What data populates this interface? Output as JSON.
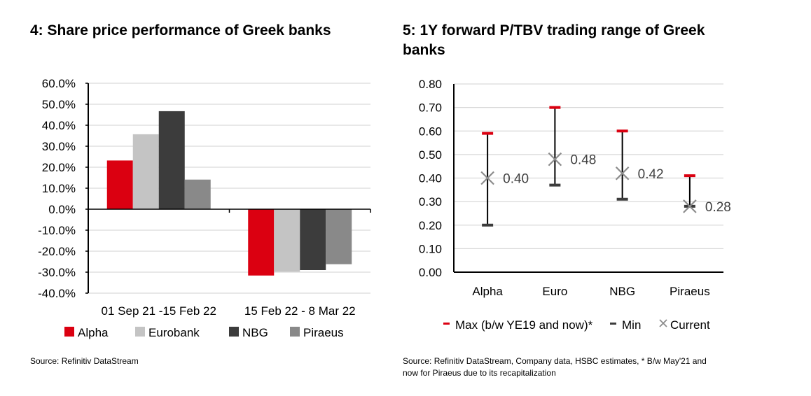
{
  "chart_data": [
    {
      "type": "bar",
      "title": "4: Share price performance of Greek banks",
      "categories": [
        "01 Sep 21 -15 Feb 22",
        "15 Feb 22 - 8 Mar 22"
      ],
      "series": [
        {
          "name": "Alpha",
          "values": [
            23.2,
            -31.6
          ],
          "color": "#db0011"
        },
        {
          "name": "Eurobank",
          "values": [
            35.7,
            -29.8
          ],
          "color": "#c4c4c4"
        },
        {
          "name": "NBG",
          "values": [
            46.7,
            -29.0
          ],
          "color": "#3c3c3c"
        },
        {
          "name": "Piraeus",
          "values": [
            14.1,
            -26.2
          ],
          "color": "#898989"
        }
      ],
      "ylim": [
        -40,
        60
      ],
      "yticks": [
        "60.0%",
        "50.0%",
        "40.0%",
        "30.0%",
        "20.0%",
        "10.0%",
        "0.0%",
        "-10.0%",
        "-20.0%",
        "-30.0%",
        "-40.0%"
      ],
      "grid": true,
      "legend": "bottom",
      "source": "Source: Refinitiv DataStream"
    },
    {
      "type": "range",
      "title": "5: 1Y forward P/TBV trading range of Greek banks",
      "categories": [
        "Alpha",
        "Euro",
        "NBG",
        "Piraeus"
      ],
      "max": [
        0.59,
        0.7,
        0.6,
        0.41
      ],
      "min": [
        0.2,
        0.37,
        0.31,
        0.28
      ],
      "current": [
        0.4,
        0.48,
        0.42,
        0.28
      ],
      "current_labels": [
        "0.40",
        "0.48",
        "0.42",
        "0.28"
      ],
      "ylim": [
        0,
        0.8
      ],
      "yticks": [
        "0.80",
        "0.70",
        "0.60",
        "0.50",
        "0.40",
        "0.30",
        "0.20",
        "0.10",
        "0.00"
      ],
      "grid": true,
      "legend": "bottom",
      "legend_entries": [
        "Max (b/w YE19 and now)*",
        "Min",
        "Current"
      ],
      "colors": {
        "max": "#db0011",
        "min": "#3c3c3c",
        "current": "#8c8c8c"
      },
      "source_line1": "Source: Refinitiv DataStream, Company data, HSBC estimates, * B/w May'21 and",
      "source_line2": "now for Piraeus due to its recapitalization"
    }
  ]
}
